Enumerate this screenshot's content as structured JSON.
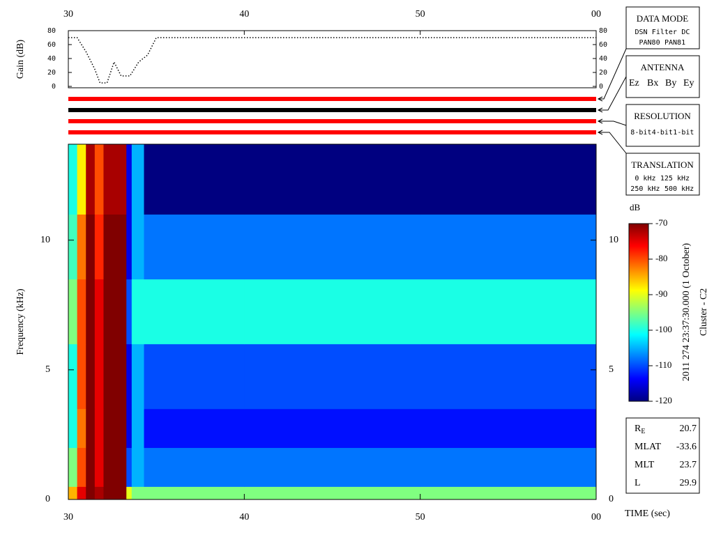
{
  "chart_data": [
    {
      "type": "line",
      "ylabel": "Gain (dB)",
      "x": [
        30,
        30.5,
        31,
        31.5,
        31.8,
        32.2,
        32.6,
        33,
        33.5,
        34,
        34.5,
        35,
        60
      ],
      "values": [
        70,
        70,
        50,
        25,
        5,
        5,
        35,
        15,
        15,
        35,
        45,
        70,
        70
      ],
      "color": "#000000",
      "xlim": [
        30,
        60
      ],
      "xticks": [
        30,
        40,
        50,
        {
          "value": 60,
          "label": "00"
        }
      ],
      "ylim": [
        0,
        80
      ],
      "yticks": [
        0,
        20,
        40,
        60,
        80
      ]
    },
    {
      "type": "heatmap",
      "ylabel": "Frequency (kHz)",
      "xlabel": "TIME (sec)",
      "x_edges": [
        30,
        30.5,
        31,
        31.5,
        32,
        33.3,
        33.6,
        34.3,
        40,
        50,
        60
      ],
      "y_edges": [
        0,
        0.5,
        2,
        3.5,
        6,
        8.5,
        11,
        13.7
      ],
      "z": [
        [
          -85,
          -75,
          -70,
          -72,
          -70,
          -90,
          -95,
          -95,
          -95,
          -95
        ],
        [
          -95,
          -80,
          -70,
          -75,
          -70,
          -110,
          -105,
          -108,
          -108,
          -108
        ],
        [
          -100,
          -82,
          -70,
          -75,
          -70,
          -115,
          -105,
          -113,
          -113,
          -113
        ],
        [
          -100,
          -80,
          -70,
          -75,
          -70,
          -115,
          -105,
          -110,
          -110,
          -110
        ],
        [
          -95,
          -80,
          -70,
          -75,
          -70,
          -110,
          -100,
          -100,
          -100,
          -100
        ],
        [
          -98,
          -82,
          -70,
          -78,
          -70,
          -115,
          -105,
          -108,
          -108,
          -108
        ],
        [
          -100,
          -88,
          -72,
          -80,
          -72,
          -115,
          -105,
          -120,
          -120,
          -120
        ]
      ],
      "xlim": [
        30,
        60
      ],
      "xticks": [
        30,
        40,
        50,
        {
          "value": 60,
          "label": "00"
        }
      ],
      "ylim": [
        0,
        13.7
      ],
      "yticks": [
        0,
        5,
        10
      ],
      "colorbar": {
        "label": "dB",
        "clim": [
          -120,
          -70
        ],
        "ticks": [
          -70,
          -80,
          -90,
          -100,
          -110,
          -120
        ]
      }
    }
  ],
  "status_colors": [
    "#ff0000",
    "#000000",
    "#ff0000",
    "#ff0000"
  ],
  "panels": [
    {
      "title": "DATA MODE",
      "rows": [
        [
          {
            "text": "DSN",
            "color": "#ff0000"
          },
          {
            "text": "Filter",
            "color": "#00c000"
          },
          {
            "text": "DC",
            "color": "#0000ff"
          }
        ],
        [
          {
            "text": "PAN80",
            "color": "#000000"
          },
          {
            "text": "PAN81",
            "color": "#00c0c0"
          }
        ]
      ]
    },
    {
      "title": "ANTENNA",
      "rows": [
        [
          {
            "text": "Ez",
            "color": "#ff0000"
          },
          {
            "text": "Bx",
            "color": "#00c000"
          },
          {
            "text": "By",
            "color": "#0000ff"
          },
          {
            "text": "Ey",
            "color": "#000000"
          }
        ]
      ]
    },
    {
      "title": "RESOLUTION",
      "rows": [
        [
          {
            "text": "8-bit",
            "color": "#ff0000"
          },
          {
            "text": "4-bit",
            "color": "#00c000"
          },
          {
            "text": "1-bit",
            "color": "#0000ff"
          }
        ]
      ]
    },
    {
      "title": "TRANSLATION",
      "rows": [
        [
          {
            "text": "0 kHz",
            "color": "#ff0000"
          },
          {
            "text": "125 kHz",
            "color": "#00c000"
          }
        ],
        [
          {
            "text": "250 kHz",
            "color": "#0000ff"
          },
          {
            "text": "500 kHz",
            "color": "#000000"
          }
        ]
      ]
    }
  ],
  "timestamp": "2011 274 23:37:30.000 (1 October)",
  "spacecraft": "Cluster - C2",
  "orbit": [
    {
      "label": "R",
      "sub": "E",
      "value": "20.7"
    },
    {
      "label": "MLAT",
      "value": "-33.6"
    },
    {
      "label": "MLT",
      "value": "23.7"
    },
    {
      "label": "L",
      "value": "29.9"
    }
  ]
}
